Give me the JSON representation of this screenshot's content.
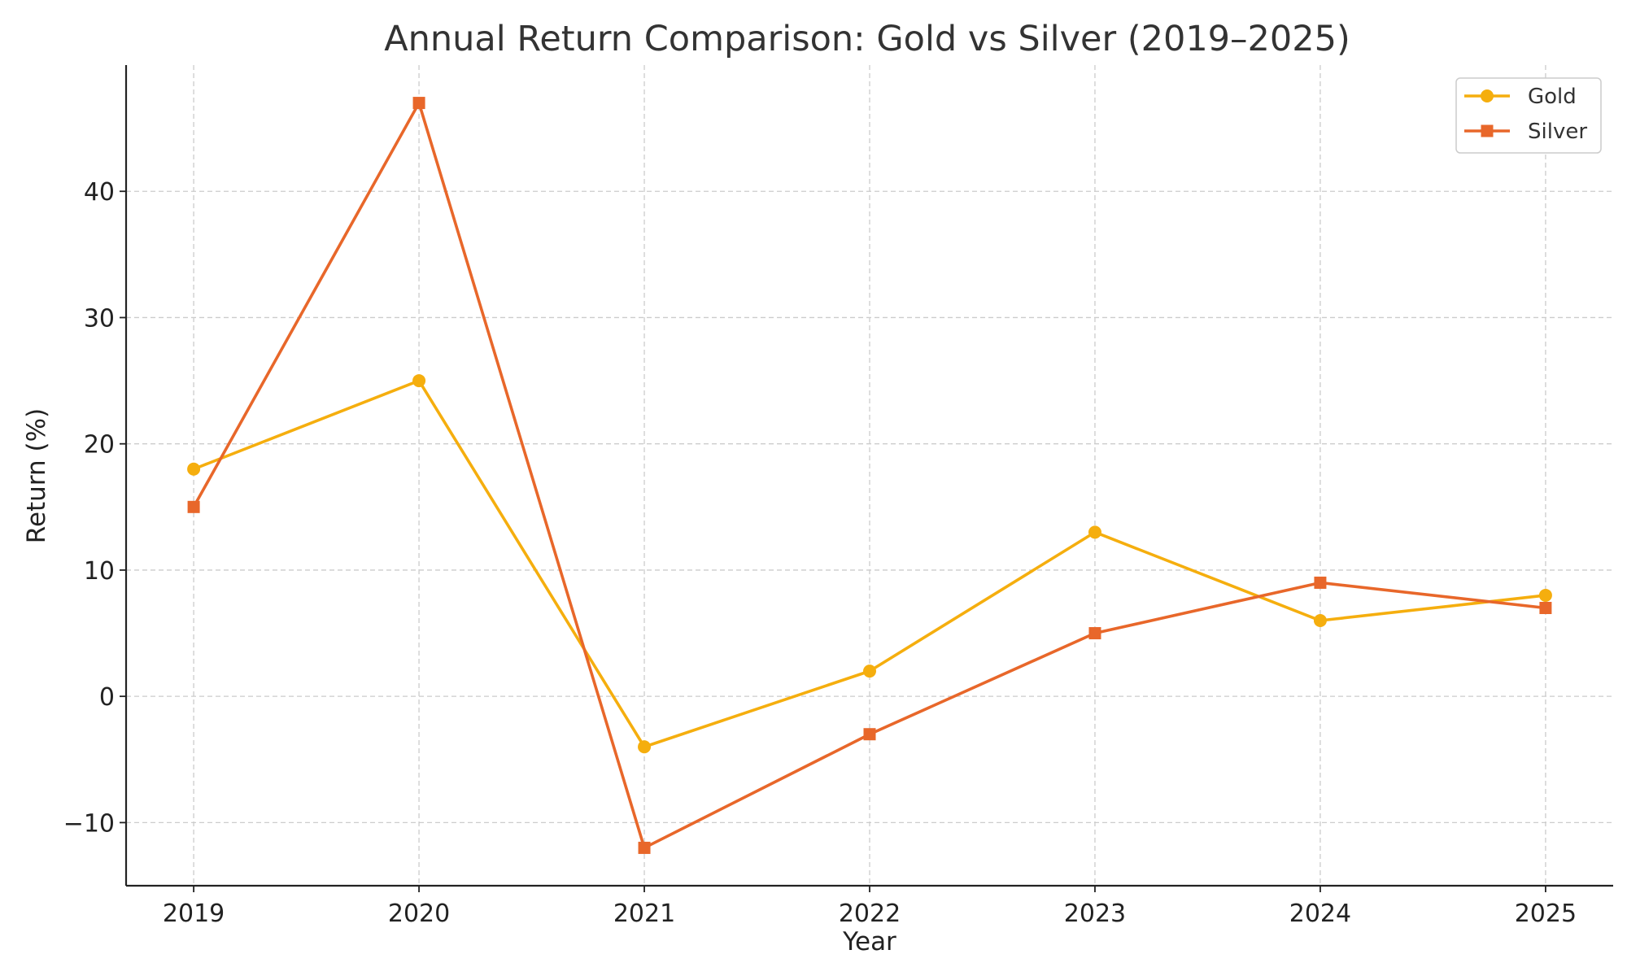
{
  "chart_data": {
    "type": "line",
    "title": "Annual Return Comparison: Gold vs Silver (2019–2025)",
    "xlabel": "Year",
    "ylabel": "Return (%)",
    "x": [
      "2019",
      "2020",
      "2021",
      "2022",
      "2023",
      "2024",
      "2025"
    ],
    "xlim": [
      2018.7,
      2025.3
    ],
    "ylim": [
      -15,
      50
    ],
    "yticks": [
      -10,
      0,
      10,
      20,
      30,
      40
    ],
    "ytick_labels": [
      "−10",
      "0",
      "10",
      "20",
      "30",
      "40"
    ],
    "grid": true,
    "legend_position": "top-right",
    "series": [
      {
        "name": "Gold",
        "color": "#F5AE0E",
        "marker": "circle",
        "values": [
          18,
          25,
          -4,
          2,
          13,
          6,
          8
        ]
      },
      {
        "name": "Silver",
        "color": "#E8672A",
        "marker": "square",
        "values": [
          15,
          47,
          -12,
          -3,
          5,
          9,
          7
        ]
      }
    ]
  }
}
